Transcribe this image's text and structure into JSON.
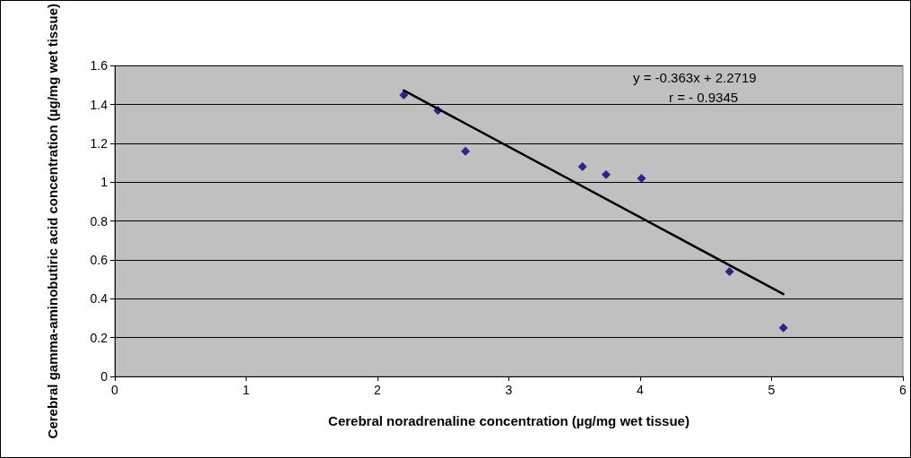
{
  "chart_data": {
    "type": "scatter",
    "xlabel": "Cerebral noradrenaline concentration (µg/mg wet tissue)",
    "ylabel": "Cerebral gamma-aminobutiric acid concentration (µg/mg wet tissue)",
    "annotations": [
      "y = -0.363x + 2.2719",
      "r = - 0.9345"
    ],
    "series": [
      {
        "color": "#000080",
        "marker": "diamond",
        "x": [
          2.2,
          2.46,
          2.67,
          3.56,
          3.74,
          4.01,
          4.68,
          5.09
        ],
        "values": [
          1.45,
          1.37,
          1.16,
          1.08,
          1.04,
          1.02,
          0.54,
          0.25
        ]
      },
      {
        "type": "line",
        "color": "#000000",
        "marker": "none",
        "line_style": "solid",
        "x": [
          2.2,
          5.09
        ],
        "values": [
          1.473,
          0.424
        ]
      }
    ],
    "xlim": [
      0,
      6
    ],
    "xticks": [
      0,
      1,
      2,
      3,
      4,
      5,
      6
    ],
    "ylim": [
      0,
      1.6
    ],
    "yticks": [
      0,
      0.2,
      0.4,
      0.6,
      0.8,
      1,
      1.2,
      1.4,
      1.6
    ],
    "grid": "y"
  }
}
